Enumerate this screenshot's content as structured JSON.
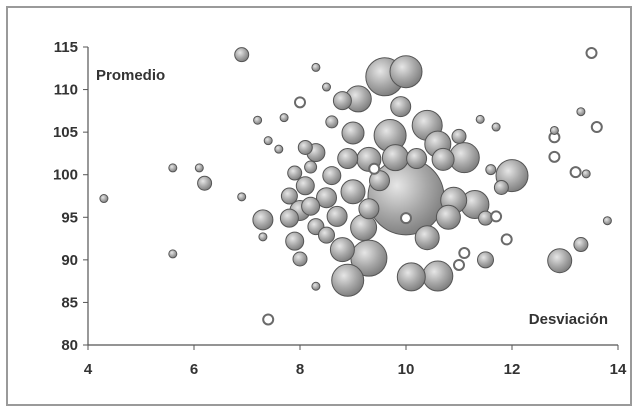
{
  "chart_data": {
    "type": "scatter",
    "title": "",
    "xlabel": "",
    "ylabel": "",
    "xlim": [
      4,
      14
    ],
    "ylim": [
      80,
      115
    ],
    "xticks": [
      4,
      6,
      8,
      10,
      12,
      14
    ],
    "yticks": [
      80,
      85,
      90,
      95,
      100,
      105,
      110,
      115
    ],
    "grid": false,
    "legend": "none",
    "annotations": {
      "top_left": "Promedio",
      "bottom_right": "Desviación"
    },
    "colors": {
      "bubble_fill": "#a8a8a8",
      "bubble_edge": "#555555",
      "hollow_edge": "#6a6a6a",
      "axis": "#555555",
      "text": "#333333"
    },
    "points": [
      {
        "x": 4.3,
        "y": 97.2,
        "s": 4,
        "filled": true
      },
      {
        "x": 5.6,
        "y": 100.8,
        "s": 4,
        "filled": true
      },
      {
        "x": 5.6,
        "y": 90.7,
        "s": 4,
        "filled": true
      },
      {
        "x": 6.1,
        "y": 100.8,
        "s": 4,
        "filled": true
      },
      {
        "x": 6.2,
        "y": 99.0,
        "s": 7,
        "filled": true
      },
      {
        "x": 6.9,
        "y": 114.1,
        "s": 7,
        "filled": true
      },
      {
        "x": 6.9,
        "y": 97.4,
        "s": 4,
        "filled": true
      },
      {
        "x": 7.2,
        "y": 106.4,
        "s": 4,
        "filled": true
      },
      {
        "x": 7.3,
        "y": 94.7,
        "s": 10,
        "filled": true
      },
      {
        "x": 7.3,
        "y": 92.7,
        "s": 4,
        "filled": true
      },
      {
        "x": 7.4,
        "y": 83.0,
        "s": 5,
        "filled": false
      },
      {
        "x": 7.4,
        "y": 104.0,
        "s": 4,
        "filled": true
      },
      {
        "x": 7.6,
        "y": 103.0,
        "s": 4,
        "filled": true
      },
      {
        "x": 7.7,
        "y": 106.7,
        "s": 4,
        "filled": true
      },
      {
        "x": 7.8,
        "y": 97.5,
        "s": 8,
        "filled": true
      },
      {
        "x": 7.8,
        "y": 94.9,
        "s": 9,
        "filled": true
      },
      {
        "x": 7.9,
        "y": 100.2,
        "s": 7,
        "filled": true
      },
      {
        "x": 7.9,
        "y": 92.2,
        "s": 9,
        "filled": true
      },
      {
        "x": 8.0,
        "y": 108.5,
        "s": 5,
        "filled": false
      },
      {
        "x": 8.0,
        "y": 95.8,
        "s": 10,
        "filled": true
      },
      {
        "x": 8.0,
        "y": 90.1,
        "s": 7,
        "filled": true
      },
      {
        "x": 8.1,
        "y": 103.2,
        "s": 7,
        "filled": true
      },
      {
        "x": 8.1,
        "y": 98.7,
        "s": 9,
        "filled": true
      },
      {
        "x": 8.2,
        "y": 96.3,
        "s": 9,
        "filled": true
      },
      {
        "x": 8.2,
        "y": 100.9,
        "s": 6,
        "filled": true
      },
      {
        "x": 8.3,
        "y": 112.6,
        "s": 4,
        "filled": true
      },
      {
        "x": 8.3,
        "y": 102.6,
        "s": 9,
        "filled": true
      },
      {
        "x": 8.3,
        "y": 93.9,
        "s": 8,
        "filled": true
      },
      {
        "x": 8.3,
        "y": 86.9,
        "s": 4,
        "filled": true
      },
      {
        "x": 8.5,
        "y": 97.3,
        "s": 10,
        "filled": true
      },
      {
        "x": 8.5,
        "y": 92.9,
        "s": 8,
        "filled": true
      },
      {
        "x": 8.5,
        "y": 110.3,
        "s": 4,
        "filled": true
      },
      {
        "x": 8.6,
        "y": 99.9,
        "s": 9,
        "filled": true
      },
      {
        "x": 8.6,
        "y": 106.2,
        "s": 6,
        "filled": true
      },
      {
        "x": 8.7,
        "y": 95.1,
        "s": 10,
        "filled": true
      },
      {
        "x": 8.8,
        "y": 91.2,
        "s": 12,
        "filled": true
      },
      {
        "x": 8.8,
        "y": 108.7,
        "s": 9,
        "filled": true
      },
      {
        "x": 8.9,
        "y": 101.9,
        "s": 10,
        "filled": true
      },
      {
        "x": 9.0,
        "y": 98.0,
        "s": 12,
        "filled": true
      },
      {
        "x": 9.0,
        "y": 104.9,
        "s": 11,
        "filled": true
      },
      {
        "x": 9.1,
        "y": 108.9,
        "s": 13,
        "filled": true
      },
      {
        "x": 9.2,
        "y": 93.8,
        "s": 13,
        "filled": true
      },
      {
        "x": 8.9,
        "y": 87.6,
        "s": 16,
        "filled": true
      },
      {
        "x": 9.3,
        "y": 101.8,
        "s": 12,
        "filled": true
      },
      {
        "x": 9.3,
        "y": 96.0,
        "s": 10,
        "filled": true
      },
      {
        "x": 9.5,
        "y": 99.3,
        "s": 10,
        "filled": true
      },
      {
        "x": 9.6,
        "y": 111.5,
        "s": 19,
        "filled": true
      },
      {
        "x": 9.7,
        "y": 104.6,
        "s": 16,
        "filled": true
      },
      {
        "x": 9.8,
        "y": 102.0,
        "s": 13,
        "filled": true
      },
      {
        "x": 9.3,
        "y": 90.2,
        "s": 18,
        "filled": true
      },
      {
        "x": 9.4,
        "y": 100.7,
        "s": 5,
        "filled": false
      },
      {
        "x": 9.9,
        "y": 108.0,
        "s": 10,
        "filled": true
      },
      {
        "x": 10.0,
        "y": 97.4,
        "s": 38,
        "filled": true
      },
      {
        "x": 10.0,
        "y": 94.9,
        "s": 5,
        "filled": false
      },
      {
        "x": 10.0,
        "y": 112.1,
        "s": 16,
        "filled": true
      },
      {
        "x": 10.2,
        "y": 101.9,
        "s": 10,
        "filled": true
      },
      {
        "x": 10.1,
        "y": 88.0,
        "s": 14,
        "filled": true
      },
      {
        "x": 10.4,
        "y": 105.8,
        "s": 15,
        "filled": true
      },
      {
        "x": 10.4,
        "y": 92.6,
        "s": 12,
        "filled": true
      },
      {
        "x": 10.6,
        "y": 88.1,
        "s": 15,
        "filled": true
      },
      {
        "x": 10.6,
        "y": 103.6,
        "s": 13,
        "filled": true
      },
      {
        "x": 10.7,
        "y": 101.8,
        "s": 11,
        "filled": true
      },
      {
        "x": 10.9,
        "y": 97.0,
        "s": 13,
        "filled": true
      },
      {
        "x": 10.8,
        "y": 95.0,
        "s": 12,
        "filled": true
      },
      {
        "x": 11.0,
        "y": 104.5,
        "s": 7,
        "filled": true
      },
      {
        "x": 11.1,
        "y": 102.0,
        "s": 15,
        "filled": true
      },
      {
        "x": 11.1,
        "y": 90.8,
        "s": 5,
        "filled": false
      },
      {
        "x": 11.0,
        "y": 89.4,
        "s": 5,
        "filled": false
      },
      {
        "x": 11.3,
        "y": 96.5,
        "s": 14,
        "filled": true
      },
      {
        "x": 11.4,
        "y": 106.5,
        "s": 4,
        "filled": true
      },
      {
        "x": 11.5,
        "y": 94.9,
        "s": 7,
        "filled": true
      },
      {
        "x": 11.5,
        "y": 90.0,
        "s": 8,
        "filled": true
      },
      {
        "x": 11.6,
        "y": 100.6,
        "s": 5,
        "filled": true
      },
      {
        "x": 11.7,
        "y": 105.6,
        "s": 4,
        "filled": true
      },
      {
        "x": 11.8,
        "y": 98.5,
        "s": 7,
        "filled": true
      },
      {
        "x": 12.0,
        "y": 99.9,
        "s": 16,
        "filled": true
      },
      {
        "x": 11.9,
        "y": 92.4,
        "s": 5,
        "filled": false
      },
      {
        "x": 11.7,
        "y": 95.1,
        "s": 5,
        "filled": false
      },
      {
        "x": 12.8,
        "y": 105.2,
        "s": 4,
        "filled": true
      },
      {
        "x": 12.8,
        "y": 104.4,
        "s": 5,
        "filled": false
      },
      {
        "x": 12.8,
        "y": 102.1,
        "s": 5,
        "filled": false
      },
      {
        "x": 12.9,
        "y": 89.9,
        "s": 12,
        "filled": true
      },
      {
        "x": 13.2,
        "y": 100.3,
        "s": 5,
        "filled": false
      },
      {
        "x": 13.3,
        "y": 107.4,
        "s": 4,
        "filled": true
      },
      {
        "x": 13.3,
        "y": 91.8,
        "s": 7,
        "filled": true
      },
      {
        "x": 13.4,
        "y": 100.1,
        "s": 4,
        "filled": true
      },
      {
        "x": 13.5,
        "y": 114.3,
        "s": 5,
        "filled": false
      },
      {
        "x": 13.6,
        "y": 105.6,
        "s": 5,
        "filled": false
      },
      {
        "x": 13.8,
        "y": 94.6,
        "s": 4,
        "filled": true
      }
    ]
  }
}
